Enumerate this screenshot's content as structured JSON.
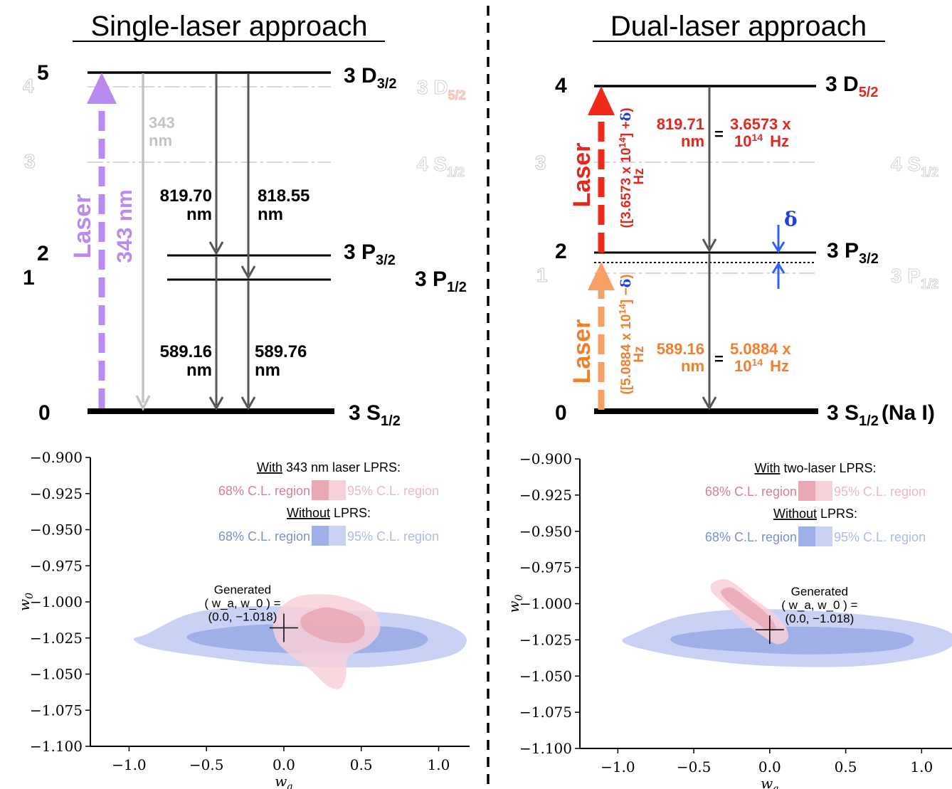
{
  "left": {
    "title": "Single-laser approach",
    "level_numbers": [
      "5",
      "4",
      "3",
      "2",
      "1",
      "0"
    ],
    "levels": {
      "d32": {
        "main": "3 D",
        "sub": "3/2"
      },
      "d52": {
        "main": "3 D",
        "sub": "5/2"
      },
      "s12": {
        "main": "4 S",
        "sub": "1/2"
      },
      "p32": {
        "main": "3 P",
        "sub": "3/2"
      },
      "p12": {
        "main": "3 P",
        "sub": "1/2"
      },
      "ground": {
        "main": "3 S",
        "sub": "1/2"
      }
    },
    "laser_label": "Laser",
    "laser_wavelength": "343 nm",
    "gray_label": [
      "343",
      "nm"
    ],
    "transitions": [
      {
        "value": "819.70",
        "unit": "nm"
      },
      {
        "value": "818.55",
        "unit": "nm"
      },
      {
        "value": "589.16",
        "unit": "nm"
      },
      {
        "value": "589.76",
        "unit": "nm"
      }
    ]
  },
  "right": {
    "title": "Dual-laser approach",
    "level_numbers": [
      "4",
      "3",
      "2",
      "1",
      "0"
    ],
    "levels": {
      "d52": {
        "main": "3 D",
        "sub": "5/2"
      },
      "s12": {
        "main": "4 S",
        "sub": "1/2"
      },
      "p32": {
        "main": "3 P",
        "sub": "3/2"
      },
      "p12": {
        "main": "3 P",
        "sub": "1/2"
      },
      "ground": {
        "main": "3 S",
        "sub": "1/2",
        "suffix": "(Na I)"
      }
    },
    "upper_laser": {
      "label": "Laser",
      "freq_text": "([3.6573 x 10",
      "exp": "14",
      "tail": "] +",
      "delta": "δ",
      "close": ")",
      "unit": "Hz"
    },
    "lower_laser": {
      "label": "Laser",
      "freq_text": "([5.0884 x 10",
      "exp": "14",
      "tail": "] −",
      "delta": "δ",
      "close": ")",
      "unit": "Hz"
    },
    "upper_transition": {
      "value": "819.71",
      "unit": "nm",
      "eq": "=",
      "freq": "3.6573 x",
      "freq2": "10",
      "exp": "14",
      "hz": "Hz"
    },
    "lower_transition": {
      "value": "589.16",
      "unit": "nm",
      "eq": "=",
      "freq": "5.0884 x",
      "freq2": "10",
      "exp": "14",
      "hz": "Hz"
    },
    "delta_symbol": "δ"
  },
  "chart_data": [
    {
      "type": "contour",
      "xlabel": "w_a",
      "ylabel": "w_0",
      "xticks": [
        "−1.0",
        "−0.5",
        "0.0",
        "0.5",
        "1.0"
      ],
      "yticks": [
        "−0.900",
        "−0.925",
        "−0.950",
        "−0.975",
        "−1.000",
        "−1.025",
        "−1.050",
        "−1.075",
        "−1.100"
      ],
      "xlim": [
        -1.25,
        1.2
      ],
      "ylim": [
        -1.1,
        -0.9
      ],
      "generated_point": {
        "wa": 0.0,
        "w0": -1.018
      },
      "generated_text": [
        "Generated",
        "( w_a,   w_0 ) =",
        "(0.0, −1.018)"
      ],
      "legend": {
        "with_heading_u": "With",
        "with_heading_rest": " 343 nm laser LPRS:",
        "without_heading_u": "Without",
        "without_heading_rest": " LPRS:",
        "cl68": "68% C.L. region",
        "cl95": "95% C.L. region"
      },
      "colors": {
        "pink68": "#e8a8b4",
        "pink95": "#f8d0d8",
        "blue68": "#9fb0e6",
        "blue95": "#c9d2f4"
      }
    },
    {
      "type": "contour",
      "xlabel": "w_a",
      "ylabel": "w_0",
      "xticks": [
        "−1.0",
        "−0.5",
        "0.0",
        "0.5",
        "1.0"
      ],
      "yticks": [
        "−0.900",
        "−0.925",
        "−0.950",
        "−0.975",
        "−1.000",
        "−1.025",
        "−1.050",
        "−1.075",
        "−1.100"
      ],
      "xlim": [
        -1.25,
        1.2
      ],
      "ylim": [
        -1.1,
        -0.9
      ],
      "generated_point": {
        "wa": 0.0,
        "w0": -1.018
      },
      "generated_text": [
        "Generated",
        "( w_a,   w_0 ) =",
        "(0.0, −1.018)"
      ],
      "legend": {
        "with_heading_u": "With",
        "with_heading_rest": " two-laser LPRS:",
        "without_heading_u": "Without",
        "without_heading_rest": " LPRS:",
        "cl68": "68% C.L. region",
        "cl95": "95% C.L. region"
      },
      "colors": {
        "pink68": "#e8a8b4",
        "pink95": "#f8d0d8",
        "blue68": "#9fb0e6",
        "blue95": "#c9d2f4"
      }
    }
  ]
}
